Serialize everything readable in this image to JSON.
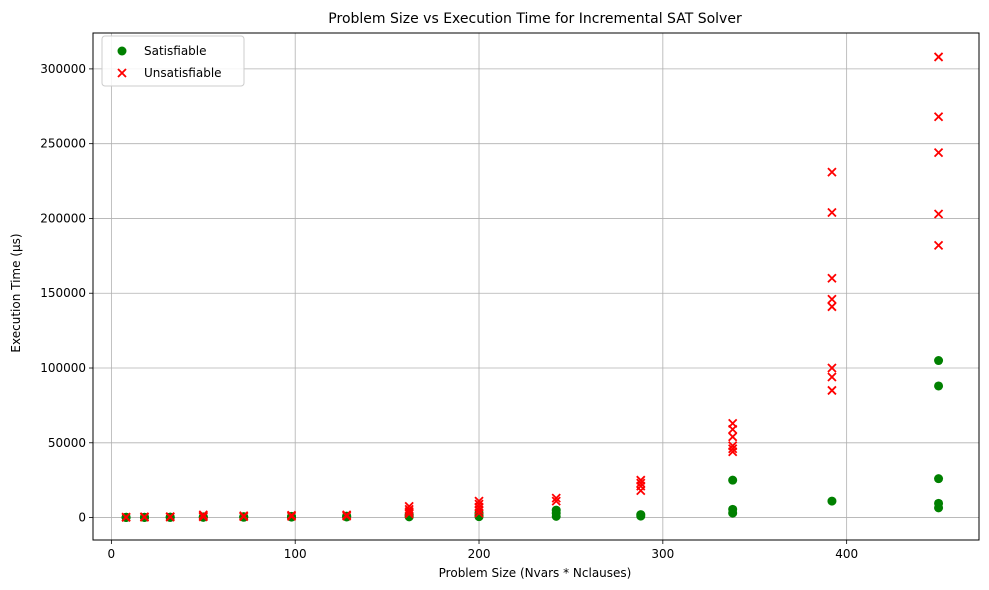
{
  "chart_data": {
    "type": "scatter",
    "title": "Problem Size vs Execution Time for Incremental SAT Solver",
    "xlabel": "Problem Size (Nvars * Nclauses)",
    "ylabel": "Execution Time (μs)",
    "xlim": [
      -10,
      472
    ],
    "ylim": [
      -15000,
      324000
    ],
    "xticks": [
      0,
      100,
      200,
      300,
      400
    ],
    "yticks": [
      0,
      50000,
      100000,
      150000,
      200000,
      250000,
      300000
    ],
    "grid": true,
    "legend_position": "top-left",
    "series": [
      {
        "name": "Satisfiable",
        "marker": "circle",
        "color": "#008000",
        "points": [
          [
            8,
            50
          ],
          [
            8,
            120
          ],
          [
            8,
            200
          ],
          [
            18,
            80
          ],
          [
            18,
            150
          ],
          [
            18,
            250
          ],
          [
            32,
            100
          ],
          [
            32,
            200
          ],
          [
            32,
            300
          ],
          [
            50,
            150
          ],
          [
            50,
            300
          ],
          [
            50,
            500
          ],
          [
            72,
            200
          ],
          [
            72,
            400
          ],
          [
            72,
            600
          ],
          [
            98,
            300
          ],
          [
            98,
            500
          ],
          [
            98,
            800
          ],
          [
            128,
            400
          ],
          [
            128,
            700
          ],
          [
            128,
            1000
          ],
          [
            162,
            500
          ],
          [
            162,
            1200
          ],
          [
            162,
            2000
          ],
          [
            200,
            600
          ],
          [
            200,
            1500
          ],
          [
            200,
            3000
          ],
          [
            242,
            800
          ],
          [
            242,
            3000
          ],
          [
            242,
            5000
          ],
          [
            288,
            1000
          ],
          [
            288,
            2000
          ],
          [
            338,
            3000
          ],
          [
            338,
            5500
          ],
          [
            338,
            25000
          ],
          [
            392,
            11000
          ],
          [
            450,
            6500
          ],
          [
            450,
            9500
          ],
          [
            450,
            26000
          ],
          [
            450,
            88000
          ],
          [
            450,
            105000
          ]
        ]
      },
      {
        "name": "Unsatisfiable",
        "marker": "x",
        "color": "#ff0000",
        "points": [
          [
            8,
            100
          ],
          [
            8,
            300
          ],
          [
            18,
            200
          ],
          [
            18,
            500
          ],
          [
            32,
            300
          ],
          [
            32,
            600
          ],
          [
            50,
            500
          ],
          [
            50,
            1000
          ],
          [
            50,
            1800
          ],
          [
            72,
            600
          ],
          [
            72,
            1200
          ],
          [
            98,
            800
          ],
          [
            98,
            1500
          ],
          [
            128,
            1000
          ],
          [
            128,
            1800
          ],
          [
            162,
            2500
          ],
          [
            162,
            4000
          ],
          [
            162,
            5500
          ],
          [
            162,
            7500
          ],
          [
            200,
            3000
          ],
          [
            200,
            5000
          ],
          [
            200,
            7000
          ],
          [
            200,
            9000
          ],
          [
            200,
            11000
          ],
          [
            242,
            11000
          ],
          [
            242,
            13000
          ],
          [
            288,
            18000
          ],
          [
            288,
            21000
          ],
          [
            288,
            23000
          ],
          [
            288,
            25000
          ],
          [
            338,
            44000
          ],
          [
            338,
            46000
          ],
          [
            338,
            48000
          ],
          [
            338,
            54000
          ],
          [
            338,
            59000
          ],
          [
            338,
            63000
          ],
          [
            392,
            85000
          ],
          [
            392,
            94000
          ],
          [
            392,
            100000
          ],
          [
            392,
            141000
          ],
          [
            392,
            146000
          ],
          [
            392,
            160000
          ],
          [
            392,
            204000
          ],
          [
            392,
            231000
          ],
          [
            450,
            182000
          ],
          [
            450,
            203000
          ],
          [
            450,
            244000
          ],
          [
            450,
            268000
          ],
          [
            450,
            308000
          ]
        ]
      }
    ]
  }
}
